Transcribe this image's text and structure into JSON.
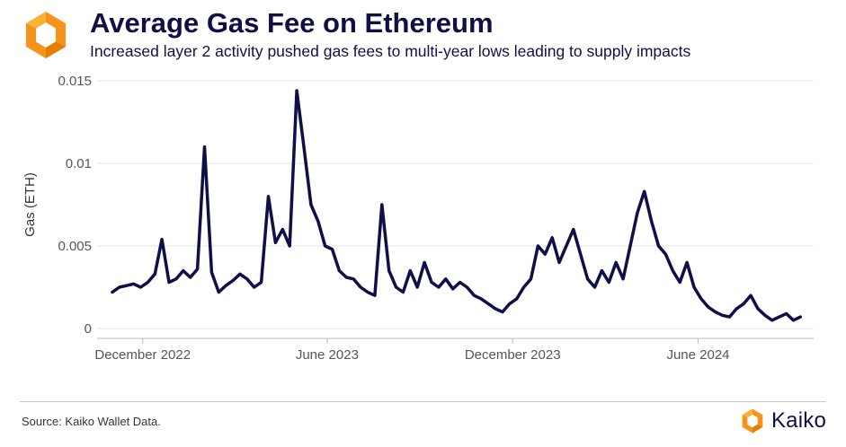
{
  "header": {
    "title": "Average Gas Fee on Ethereum",
    "subtitle": "Increased layer 2 activity pushed gas fees to multi-year lows leading to supply impacts"
  },
  "footer": {
    "source": "Source: Kaiko Wallet Data.",
    "brand": "Kaiko"
  },
  "colors": {
    "line": "#0f0f4a",
    "logo_orange": "#f7931a",
    "logo_orange_light": "#f9b233",
    "grid": "#e6e6e6"
  },
  "icons": {
    "logo": "kaiko-hexagon-logo"
  },
  "chart_data": {
    "type": "line",
    "title": "Average Gas Fee on Ethereum",
    "subtitle": "Increased layer 2 activity pushed gas fees to multi-year lows leading to supply impacts",
    "xlabel": "",
    "ylabel": "Gas (ETH)",
    "ylim": [
      0,
      0.015
    ],
    "yticks": [
      0,
      0.005,
      0.01,
      0.015
    ],
    "ytick_labels": [
      "0",
      "0.005",
      "0.01",
      "0.015"
    ],
    "xlim": [
      "2022-10-17",
      "2024-09-23"
    ],
    "xticks": [
      "2022-12-01",
      "2023-06-01",
      "2023-12-01",
      "2024-06-01"
    ],
    "xtick_labels": [
      "December 2022",
      "June 2023",
      "December 2023",
      "June 2024"
    ],
    "grid": true,
    "legend": "none",
    "x": [
      "2022-11-01",
      "2022-11-08",
      "2022-11-15",
      "2022-11-22",
      "2022-11-29",
      "2022-12-06",
      "2022-12-13",
      "2022-12-20",
      "2022-12-27",
      "2023-01-03",
      "2023-01-10",
      "2023-01-17",
      "2023-01-24",
      "2023-01-31",
      "2023-02-07",
      "2023-02-14",
      "2023-02-21",
      "2023-02-28",
      "2023-03-07",
      "2023-03-14",
      "2023-03-21",
      "2023-03-28",
      "2023-04-04",
      "2023-04-11",
      "2023-04-18",
      "2023-04-25",
      "2023-05-02",
      "2023-05-09",
      "2023-05-16",
      "2023-05-23",
      "2023-05-30",
      "2023-06-06",
      "2023-06-13",
      "2023-06-20",
      "2023-06-27",
      "2023-07-04",
      "2023-07-11",
      "2023-07-18",
      "2023-07-25",
      "2023-08-01",
      "2023-08-08",
      "2023-08-15",
      "2023-08-22",
      "2023-08-29",
      "2023-09-05",
      "2023-09-12",
      "2023-09-19",
      "2023-09-26",
      "2023-10-03",
      "2023-10-10",
      "2023-10-17",
      "2023-10-24",
      "2023-10-31",
      "2023-11-07",
      "2023-11-14",
      "2023-11-21",
      "2023-11-28",
      "2023-12-05",
      "2023-12-12",
      "2023-12-19",
      "2023-12-26",
      "2024-01-02",
      "2024-01-09",
      "2024-01-16",
      "2024-01-23",
      "2024-01-30",
      "2024-02-06",
      "2024-02-13",
      "2024-02-20",
      "2024-02-27",
      "2024-03-05",
      "2024-03-12",
      "2024-03-19",
      "2024-03-26",
      "2024-04-02",
      "2024-04-09",
      "2024-04-16",
      "2024-04-23",
      "2024-04-30",
      "2024-05-07",
      "2024-05-14",
      "2024-05-21",
      "2024-05-28",
      "2024-06-04",
      "2024-06-11",
      "2024-06-18",
      "2024-06-25",
      "2024-07-02",
      "2024-07-09",
      "2024-07-16",
      "2024-07-23",
      "2024-07-30",
      "2024-08-06",
      "2024-08-13",
      "2024-08-20",
      "2024-08-27",
      "2024-09-03",
      "2024-09-10"
    ],
    "series": [
      {
        "values": [
          0.0022,
          0.0025,
          0.0026,
          0.0027,
          0.0025,
          0.0028,
          0.0033,
          0.0054,
          0.0028,
          0.003,
          0.0035,
          0.0031,
          0.0036,
          0.011,
          0.0034,
          0.0022,
          0.0026,
          0.0029,
          0.0033,
          0.003,
          0.0025,
          0.0028,
          0.008,
          0.0052,
          0.006,
          0.005,
          0.0144,
          0.011,
          0.0075,
          0.0065,
          0.005,
          0.0048,
          0.0035,
          0.0031,
          0.003,
          0.0025,
          0.0022,
          0.002,
          0.0075,
          0.0035,
          0.0025,
          0.0022,
          0.0035,
          0.0025,
          0.004,
          0.0028,
          0.0025,
          0.003,
          0.0024,
          0.0028,
          0.0025,
          0.002,
          0.0018,
          0.0015,
          0.0012,
          0.001,
          0.0015,
          0.0018,
          0.0025,
          0.003,
          0.005,
          0.0045,
          0.0055,
          0.004,
          0.005,
          0.006,
          0.0045,
          0.003,
          0.0025,
          0.0035,
          0.0028,
          0.004,
          0.003,
          0.005,
          0.007,
          0.0083,
          0.0065,
          0.005,
          0.0045,
          0.0035,
          0.0028,
          0.004,
          0.0025,
          0.0018,
          0.0013,
          0.001,
          0.0008,
          0.0007,
          0.0012,
          0.0015,
          0.002,
          0.0012,
          0.0008,
          0.0005,
          0.0007,
          0.0009,
          0.0005,
          0.0007
        ]
      }
    ]
  }
}
